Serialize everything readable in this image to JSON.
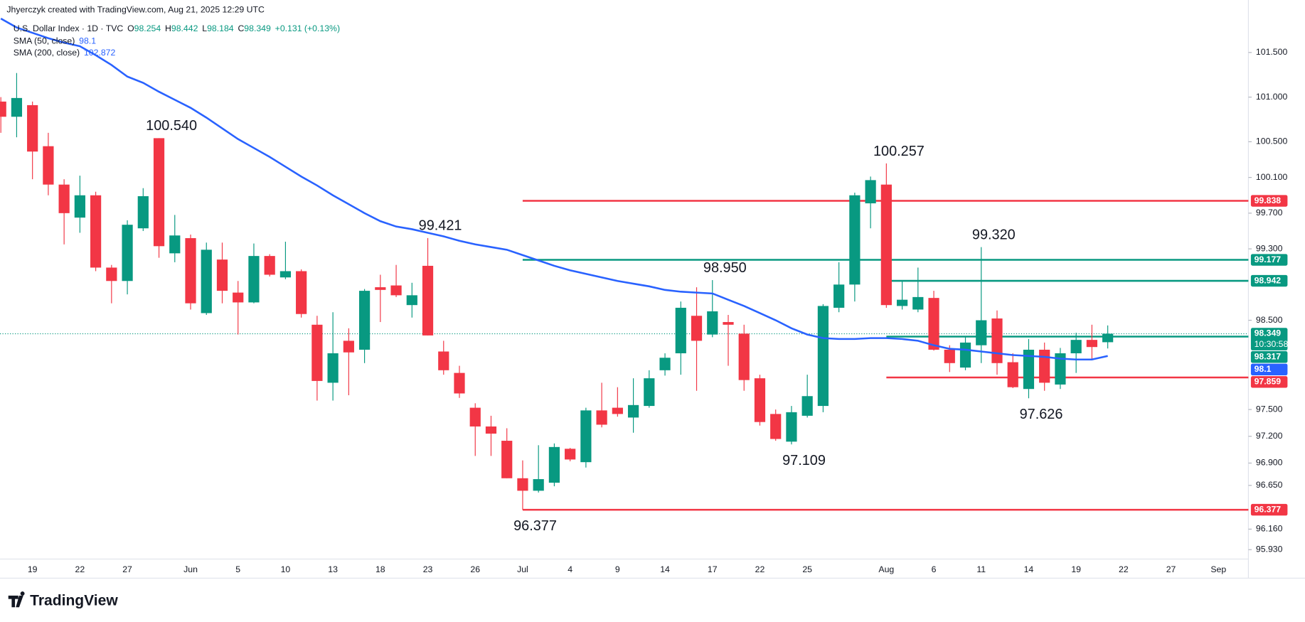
{
  "credit": "Jhyerczyk created with TradingView.com, Aug 21, 2025 12:29 UTC",
  "brand": "TradingView",
  "chart_data": {
    "type": "candlestick",
    "title": "U.S. Dollar Index · 1D · TVC",
    "ohlc_labels": [
      "O",
      "H",
      "L",
      "C"
    ],
    "change_label": "+0.131 (+0.13%)",
    "countdown": "10:30:58",
    "up_color": "#089981",
    "down_color": "#f23645",
    "categories": [
      null,
      null,
      "19",
      null,
      null,
      "22",
      null,
      null,
      "27",
      null,
      null,
      null,
      "Jun",
      null,
      null,
      "5",
      null,
      null,
      "10",
      null,
      null,
      "13",
      null,
      null,
      "18",
      null,
      null,
      "23",
      null,
      null,
      "26",
      null,
      null,
      "Jul",
      null,
      null,
      "4",
      null,
      null,
      "9",
      null,
      null,
      "14",
      null,
      null,
      "17",
      null,
      null,
      "22",
      null,
      null,
      "25",
      null,
      null,
      null,
      null,
      "Aug",
      null,
      null,
      "6",
      null,
      null,
      "11",
      null,
      null,
      "14",
      null,
      null,
      "19",
      null,
      null,
      "22",
      null,
      null,
      "27",
      null,
      null,
      "Sep"
    ],
    "open": [
      100.95,
      100.78,
      100.91,
      100.45,
      100.02,
      99.65,
      99.9,
      99.09,
      98.94,
      99.53,
      100.54,
      99.25,
      99.42,
      98.58,
      99.18,
      98.81,
      98.7,
      99.22,
      98.98,
      99.05,
      98.45,
      97.8,
      98.27,
      98.17,
      98.87,
      98.89,
      98.67,
      99.11,
      98.15,
      97.91,
      97.52,
      97.31,
      97.15,
      96.73,
      96.59,
      96.68,
      97.06,
      96.91,
      97.49,
      97.52,
      97.41,
      97.54,
      97.94,
      98.13,
      98.55,
      98.34,
      98.48,
      98.35,
      97.85,
      97.45,
      97.14,
      97.43,
      97.54,
      98.64,
      98.9,
      99.81,
      100.02,
      98.66,
      98.62,
      98.75,
      98.17,
      97.97,
      98.22,
      98.52,
      98.03,
      97.73,
      98.17,
      97.78,
      98.13,
      98.28,
      98.254,
      null,
      null,
      null,
      null,
      null,
      null,
      null
    ],
    "high": [
      101.0,
      101.27,
      100.95,
      100.6,
      100.08,
      100.12,
      99.94,
      99.12,
      99.62,
      99.98,
      100.54,
      99.68,
      99.46,
      99.37,
      99.37,
      98.94,
      99.36,
      99.24,
      99.38,
      99.07,
      98.55,
      98.59,
      98.41,
      98.85,
      99.01,
      99.12,
      98.92,
      99.421,
      98.27,
      97.99,
      97.57,
      97.43,
      97.29,
      96.93,
      97.1,
      97.12,
      97.07,
      97.52,
      97.8,
      97.75,
      97.85,
      97.94,
      98.13,
      98.71,
      98.87,
      98.95,
      98.56,
      98.45,
      97.89,
      97.5,
      97.54,
      97.89,
      98.68,
      99.15,
      99.93,
      100.11,
      100.257,
      98.94,
      99.09,
      98.83,
      98.22,
      98.31,
      99.32,
      98.61,
      98.13,
      98.29,
      98.25,
      98.19,
      98.36,
      98.45,
      98.442,
      null,
      null,
      null,
      null,
      null,
      null,
      null
    ],
    "low": [
      100.6,
      100.55,
      100.08,
      99.9,
      99.35,
      99.48,
      99.05,
      98.69,
      98.79,
      99.5,
      99.2,
      99.15,
      98.62,
      98.56,
      98.69,
      98.34,
      98.69,
      98.99,
      98.96,
      98.53,
      97.6,
      97.6,
      97.66,
      98.02,
      98.48,
      98.76,
      98.53,
      98.33,
      97.89,
      97.63,
      96.98,
      96.98,
      96.73,
      96.377,
      96.57,
      96.64,
      96.92,
      96.85,
      97.3,
      97.42,
      97.24,
      97.52,
      97.88,
      97.89,
      97.71,
      98.31,
      97.99,
      97.71,
      97.32,
      97.15,
      97.109,
      97.41,
      97.47,
      98.59,
      98.71,
      99.53,
      98.64,
      98.62,
      98.59,
      98.16,
      97.92,
      97.94,
      98.02,
      97.89,
      97.74,
      97.626,
      97.71,
      97.73,
      97.91,
      98.06,
      98.184,
      null,
      null,
      null,
      null,
      null,
      null,
      null
    ],
    "close": [
      100.78,
      100.99,
      100.39,
      100.02,
      99.7,
      99.9,
      99.09,
      98.94,
      99.57,
      99.89,
      99.33,
      99.45,
      98.69,
      99.29,
      98.83,
      98.7,
      99.22,
      99.01,
      99.05,
      98.57,
      97.82,
      98.13,
      98.14,
      98.83,
      98.84,
      98.78,
      98.78,
      98.33,
      97.94,
      97.68,
      97.31,
      97.23,
      96.73,
      96.59,
      96.72,
      97.08,
      96.94,
      97.49,
      97.33,
      97.45,
      97.55,
      97.85,
      98.08,
      98.64,
      98.27,
      98.6,
      98.45,
      97.83,
      97.36,
      97.17,
      97.47,
      97.65,
      98.66,
      98.9,
      99.9,
      100.07,
      98.67,
      98.73,
      98.76,
      98.17,
      98.02,
      98.25,
      98.5,
      98.02,
      97.75,
      98.17,
      97.8,
      98.13,
      98.28,
      98.2,
      98.349,
      null,
      null,
      null,
      null,
      null,
      null,
      null
    ],
    "series": [
      {
        "name": "SMA (50, close)",
        "color": "#2962ff",
        "values": [
          101.88,
          101.78,
          101.72,
          101.66,
          101.61,
          101.57,
          101.47,
          101.36,
          101.23,
          101.16,
          101.06,
          100.97,
          100.88,
          100.77,
          100.65,
          100.53,
          100.43,
          100.33,
          100.22,
          100.11,
          100.01,
          99.9,
          99.8,
          99.7,
          99.61,
          99.55,
          99.52,
          99.48,
          99.44,
          99.39,
          99.35,
          99.32,
          99.29,
          99.23,
          99.17,
          99.11,
          99.06,
          99.02,
          98.98,
          98.94,
          98.91,
          98.88,
          98.84,
          98.82,
          98.81,
          98.8,
          98.73,
          98.66,
          98.58,
          98.5,
          98.41,
          98.34,
          98.3,
          98.29,
          98.29,
          98.3,
          98.3,
          98.29,
          98.27,
          98.22,
          98.18,
          98.17,
          98.15,
          98.13,
          98.11,
          98.1,
          98.09,
          98.07,
          98.06,
          98.06,
          98.1,
          null,
          null,
          null,
          null,
          null,
          null,
          null
        ]
      },
      {
        "name": "SMA (200, close)",
        "color": "#2962ff",
        "last": 102.872
      }
    ],
    "levels": [
      {
        "value": 99.838,
        "color": "#f23645",
        "from": 33
      },
      {
        "value": 99.177,
        "color": "#089981",
        "from": 33
      },
      {
        "value": 98.942,
        "color": "#089981",
        "from": 56
      },
      {
        "value": 98.317,
        "color": "#089981",
        "from": 56
      },
      {
        "value": 97.859,
        "color": "#f23645",
        "from": 56
      },
      {
        "value": 96.377,
        "color": "#f23645",
        "from": 33
      }
    ],
    "annotations": [
      {
        "value": 100.54,
        "label": "100.540"
      },
      {
        "value": 99.421,
        "label": "99.421"
      },
      {
        "value": 98.95,
        "label": "98.950"
      },
      {
        "value": 100.257,
        "label": "100.257"
      },
      {
        "value": 99.32,
        "label": "99.320"
      },
      {
        "value": 97.109,
        "label": "97.109"
      },
      {
        "value": 96.377,
        "label": "96.377"
      },
      {
        "value": 97.626,
        "label": "97.626"
      }
    ],
    "ylim": [
      95.825,
      102.088
    ],
    "yticks": [
      {
        "value": 95.93,
        "label": "95.930"
      },
      {
        "value": 96.16,
        "label": "96.160"
      },
      {
        "value": 96.65,
        "label": "96.650"
      },
      {
        "value": 96.9,
        "label": "96.900"
      },
      {
        "value": 97.2,
        "label": "97.200"
      },
      {
        "value": 97.5,
        "label": "97.500"
      },
      {
        "value": 98.5,
        "label": "98.500"
      },
      {
        "value": 99.3,
        "label": "99.300"
      },
      {
        "value": 99.7,
        "label": "99.700"
      },
      {
        "value": 100.1,
        "label": "100.100"
      },
      {
        "value": 100.5,
        "label": "100.500"
      },
      {
        "value": 101,
        "label": "101.000"
      },
      {
        "value": 101.5,
        "label": "101.500"
      }
    ],
    "grid": false
  }
}
